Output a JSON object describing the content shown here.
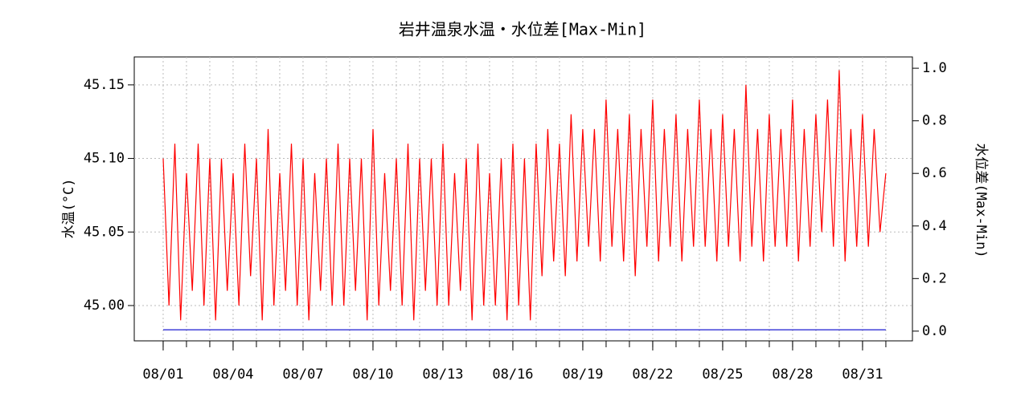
{
  "chart_data": {
    "type": "line",
    "title": "岩井温泉水温・水位差[Max-Min]",
    "ylabel": "水温(°C)",
    "y2label": "水位差(Max-Min)",
    "grid": true,
    "xlim": [
      -0.24,
      33.14
    ],
    "xticks": [
      {
        "value": 1,
        "label": "08/01"
      },
      {
        "value": 4,
        "label": "08/04"
      },
      {
        "value": 7,
        "label": "08/07"
      },
      {
        "value": 10,
        "label": "08/10"
      },
      {
        "value": 13,
        "label": "08/13"
      },
      {
        "value": 16,
        "label": "08/16"
      },
      {
        "value": 19,
        "label": "08/19"
      },
      {
        "value": 22,
        "label": "08/22"
      },
      {
        "value": 25,
        "label": "08/25"
      },
      {
        "value": 28,
        "label": "08/28"
      },
      {
        "value": 31,
        "label": "08/31"
      }
    ],
    "xticks_minor": [
      1,
      2,
      3,
      4,
      5,
      6,
      7,
      8,
      9,
      10,
      11,
      12,
      13,
      14,
      15,
      16,
      17,
      18,
      19,
      20,
      21,
      22,
      23,
      24,
      25,
      26,
      27,
      28,
      29,
      30,
      31,
      32
    ],
    "ylim": [
      44.976,
      45.169
    ],
    "yticks": [
      {
        "value": 45,
        "label": "45.00"
      },
      45.05,
      {
        "value": 45.1,
        "label": "45.10"
      },
      45.15
    ],
    "y2lim": [
      -0.037,
      1.043
    ],
    "y2ticks": [
      {
        "value": 0,
        "label": "0.0"
      },
      0.2,
      0.4,
      0.6,
      0.8,
      {
        "value": 1,
        "label": "1.0"
      }
    ],
    "series": [
      {
        "color": "#ff0000",
        "x": [
          1,
          1.25,
          1.5,
          1.75,
          2,
          2.25,
          2.5,
          2.75,
          3,
          3.25,
          3.5,
          3.75,
          4,
          4.25,
          4.5,
          4.75,
          5,
          5.25,
          5.5,
          5.75,
          6,
          6.25,
          6.5,
          6.75,
          7,
          7.25,
          7.5,
          7.75,
          8,
          8.25,
          8.5,
          8.75,
          9,
          9.25,
          9.5,
          9.75,
          10,
          10.25,
          10.5,
          10.75,
          11,
          11.25,
          11.5,
          11.75,
          12,
          12.25,
          12.5,
          12.75,
          13,
          13.25,
          13.5,
          13.75,
          14,
          14.25,
          14.5,
          14.75,
          15,
          15.25,
          15.5,
          15.75,
          16,
          16.25,
          16.5,
          16.75,
          17,
          17.25,
          17.5,
          17.75,
          18,
          18.25,
          18.5,
          18.75,
          19,
          19.25,
          19.5,
          19.75,
          20,
          20.25,
          20.5,
          20.75,
          21,
          21.25,
          21.5,
          21.75,
          22,
          22.25,
          22.5,
          22.75,
          23,
          23.25,
          23.5,
          23.75,
          24,
          24.25,
          24.5,
          24.75,
          25,
          25.25,
          25.5,
          25.75,
          26,
          26.25,
          26.5,
          26.75,
          27,
          27.25,
          27.5,
          27.75,
          28,
          28.25,
          28.5,
          28.75,
          29,
          29.25,
          29.5,
          29.75,
          30,
          30.25,
          30.5,
          30.75,
          31,
          31.25,
          31.5,
          31.75,
          32
        ],
        "values": [
          45.1,
          45.0,
          45.11,
          44.99,
          45.09,
          45.01,
          45.11,
          45.0,
          45.1,
          44.99,
          45.1,
          45.01,
          45.09,
          45.0,
          45.11,
          45.02,
          45.1,
          44.99,
          45.12,
          45.0,
          45.09,
          45.01,
          45.11,
          45.0,
          45.1,
          44.99,
          45.09,
          45.01,
          45.1,
          45.0,
          45.11,
          45.0,
          45.1,
          45.01,
          45.1,
          44.99,
          45.12,
          45.0,
          45.09,
          45.01,
          45.1,
          45.0,
          45.11,
          44.99,
          45.1,
          45.01,
          45.1,
          45.0,
          45.11,
          45.0,
          45.09,
          45.01,
          45.1,
          44.99,
          45.11,
          45.0,
          45.09,
          45.0,
          45.1,
          44.99,
          45.11,
          45.0,
          45.1,
          44.99,
          45.11,
          45.02,
          45.12,
          45.03,
          45.11,
          45.02,
          45.13,
          45.03,
          45.12,
          45.04,
          45.12,
          45.03,
          45.14,
          45.04,
          45.12,
          45.03,
          45.13,
          45.02,
          45.12,
          45.04,
          45.14,
          45.03,
          45.12,
          45.04,
          45.13,
          45.03,
          45.12,
          45.04,
          45.14,
          45.04,
          45.12,
          45.03,
          45.13,
          45.04,
          45.12,
          45.03,
          45.15,
          45.04,
          45.12,
          45.03,
          45.13,
          45.04,
          45.12,
          45.04,
          45.14,
          45.03,
          45.12,
          45.04,
          45.13,
          45.05,
          45.14,
          45.04,
          45.16,
          45.03,
          45.12,
          45.04,
          45.13,
          45.04,
          45.12,
          45.05,
          45.09
        ]
      },
      {
        "color": "#0000cc",
        "axis": "y2",
        "x": [
          1,
          32
        ],
        "values": [
          0.005,
          0.005
        ]
      }
    ]
  }
}
